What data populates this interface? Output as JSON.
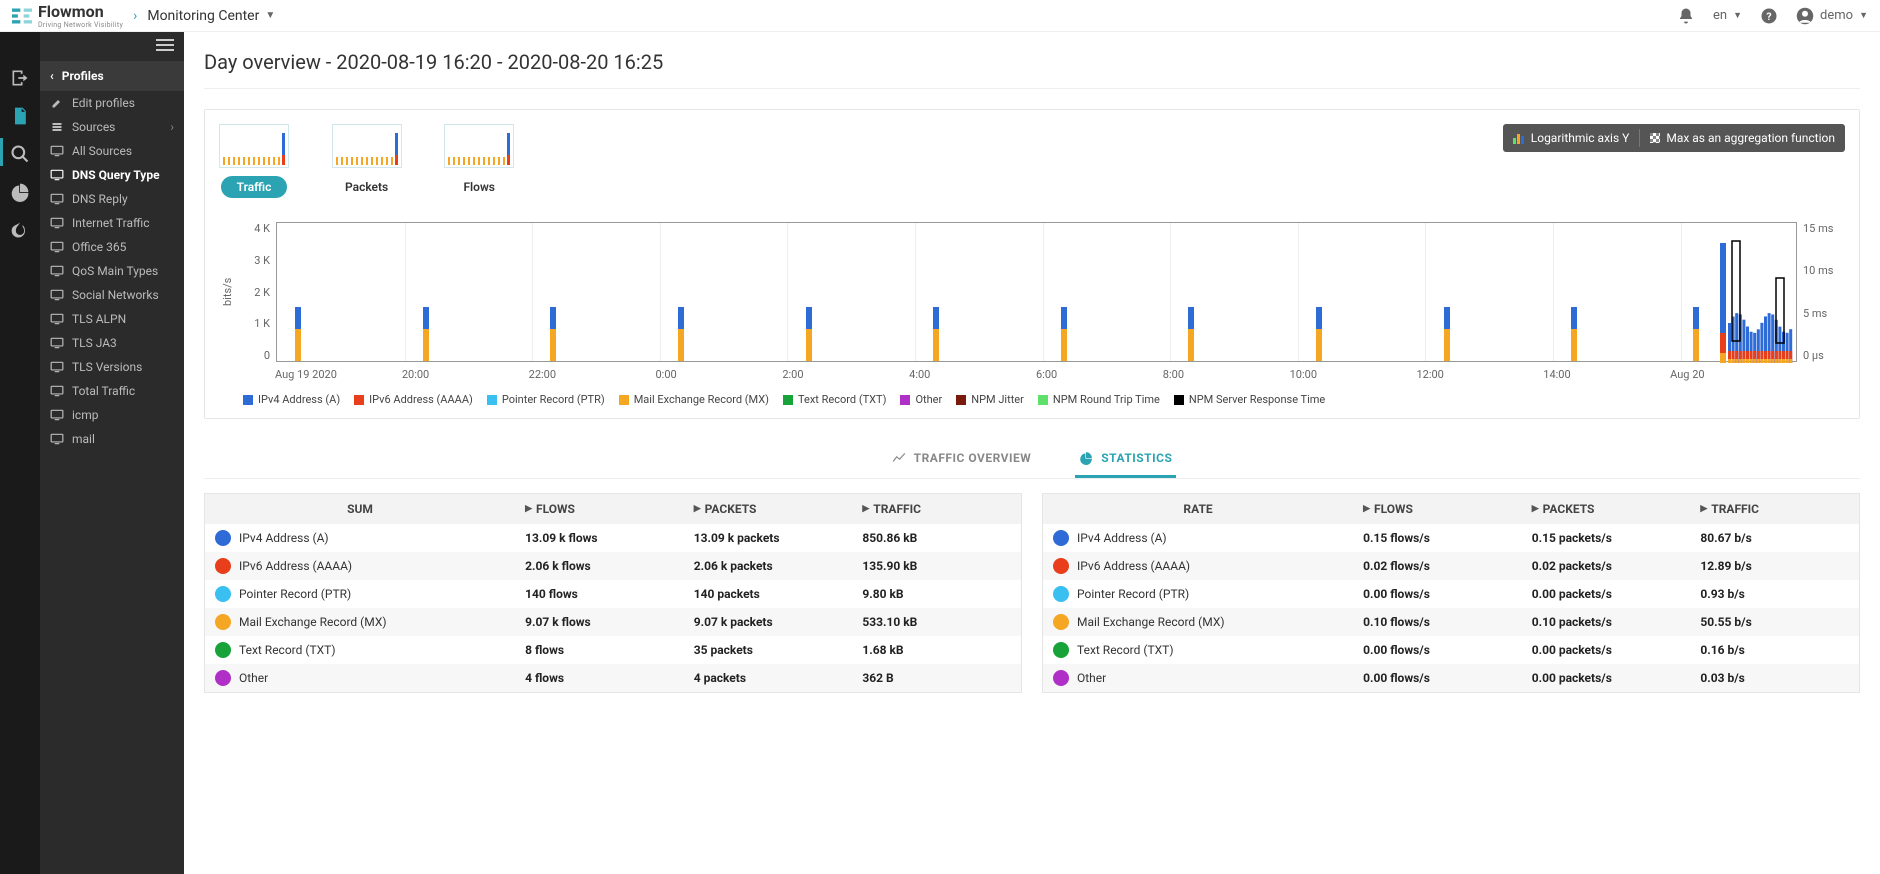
{
  "brand": {
    "name": "Flowmon",
    "tagline": "Driving Network Visibility"
  },
  "breadcrumb": "Monitoring Center",
  "topbar": {
    "lang": "en",
    "user": "demo"
  },
  "sidebar": {
    "back_label": "Profiles",
    "items": [
      {
        "label": "Edit profiles",
        "icon": "pencil"
      },
      {
        "label": "Sources",
        "icon": "stack",
        "arrow": true
      },
      {
        "label": "All Sources",
        "icon": "monitor"
      },
      {
        "label": "DNS Query Type",
        "icon": "monitor",
        "active": true
      },
      {
        "label": "DNS Reply",
        "icon": "monitor"
      },
      {
        "label": "Internet Traffic",
        "icon": "monitor"
      },
      {
        "label": "Office 365",
        "icon": "monitor"
      },
      {
        "label": "QoS Main Types",
        "icon": "monitor"
      },
      {
        "label": "Social Networks",
        "icon": "monitor"
      },
      {
        "label": "TLS ALPN",
        "icon": "monitor"
      },
      {
        "label": "TLS JA3",
        "icon": "monitor"
      },
      {
        "label": "TLS Versions",
        "icon": "monitor"
      },
      {
        "label": "Total Traffic",
        "icon": "monitor"
      },
      {
        "label": "icmp",
        "icon": "monitor"
      },
      {
        "label": "mail",
        "icon": "monitor"
      }
    ]
  },
  "page_title": "Day overview - 2020-08-19 16:20 - 2020-08-20 16:25",
  "thumbs": [
    {
      "label": "Traffic",
      "active": true
    },
    {
      "label": "Packets",
      "active": false
    },
    {
      "label": "Flows",
      "active": false
    }
  ],
  "toggles": {
    "log": "Logarithmic axis Y",
    "max": "Max as an aggregation function"
  },
  "chart": {
    "type": "bar",
    "y_label": "bits/s",
    "y_ticks": [
      "4 K",
      "3 K",
      "2 K",
      "1 K",
      "0"
    ],
    "y2_ticks": [
      "15 ms",
      "10 ms",
      "5 ms",
      "0 µs"
    ],
    "x_ticks": [
      "Aug 19 2020",
      "20:00",
      "22:00",
      "0:00",
      "2:00",
      "4:00",
      "6:00",
      "8:00",
      "10:00",
      "12:00",
      "14:00",
      "Aug 20"
    ],
    "colors": {
      "ipv4": "#2e6bd6",
      "ipv6": "#e83e1b",
      "ptr": "#39bff0",
      "mx": "#f5a623",
      "txt": "#17a33a",
      "other": "#b030c7",
      "jitter": "#7a1a0f",
      "rtt": "#5fe06a",
      "srt": "#000000",
      "grid": "#eeeeee",
      "axis": "#999999"
    },
    "bars": [
      {
        "x_pct": 1.2,
        "mx": 32,
        "ipv4": 22
      },
      {
        "x_pct": 9.6,
        "mx": 32,
        "ipv4": 22
      },
      {
        "x_pct": 18.0,
        "mx": 32,
        "ipv4": 22
      },
      {
        "x_pct": 26.4,
        "mx": 32,
        "ipv4": 22
      },
      {
        "x_pct": 34.8,
        "mx": 32,
        "ipv4": 22
      },
      {
        "x_pct": 43.2,
        "mx": 32,
        "ipv4": 22
      },
      {
        "x_pct": 51.6,
        "mx": 32,
        "ipv4": 22
      },
      {
        "x_pct": 60.0,
        "mx": 32,
        "ipv4": 22
      },
      {
        "x_pct": 68.4,
        "mx": 32,
        "ipv4": 22
      },
      {
        "x_pct": 76.8,
        "mx": 32,
        "ipv4": 22
      },
      {
        "x_pct": 85.2,
        "mx": 32,
        "ipv4": 22
      },
      {
        "x_pct": 93.2,
        "mx": 32,
        "ipv4": 22
      }
    ],
    "legend": [
      {
        "label": "IPv4 Address (A)",
        "color": "#2e6bd6"
      },
      {
        "label": "IPv6 Address (AAAA)",
        "color": "#e83e1b"
      },
      {
        "label": "Pointer Record (PTR)",
        "color": "#39bff0"
      },
      {
        "label": "Mail Exchange Record (MX)",
        "color": "#f5a623"
      },
      {
        "label": "Text Record (TXT)",
        "color": "#17a33a"
      },
      {
        "label": "Other",
        "color": "#b030c7"
      },
      {
        "label": "NPM Jitter",
        "color": "#7a1a0f"
      },
      {
        "label": "NPM Round Trip Time",
        "color": "#5fe06a"
      },
      {
        "label": "NPM Server Response Time",
        "color": "#000000"
      }
    ]
  },
  "tabs": {
    "overview": "TRAFFIC OVERVIEW",
    "stats": "STATISTICS"
  },
  "stats": {
    "sum": {
      "title": "SUM",
      "cols": [
        "FLOWS",
        "PACKETS",
        "TRAFFIC"
      ],
      "rows": [
        {
          "label": "IPv4 Address (A)",
          "color": "#2e6bd6",
          "flows": "13.09 k flows",
          "packets": "13.09 k packets",
          "traffic": "850.86 kB"
        },
        {
          "label": "IPv6 Address (AAAA)",
          "color": "#e83e1b",
          "flows": "2.06 k flows",
          "packets": "2.06 k packets",
          "traffic": "135.90 kB"
        },
        {
          "label": "Pointer Record (PTR)",
          "color": "#39bff0",
          "flows": "140   flows",
          "packets": "140   packets",
          "traffic": "9.80 kB"
        },
        {
          "label": "Mail Exchange Record (MX)",
          "color": "#f5a623",
          "flows": "9.07 k flows",
          "packets": "9.07 k packets",
          "traffic": "533.10 kB"
        },
        {
          "label": "Text Record (TXT)",
          "color": "#17a33a",
          "flows": "8   flows",
          "packets": "35   packets",
          "traffic": "1.68 kB"
        },
        {
          "label": "Other",
          "color": "#b030c7",
          "flows": "4   flows",
          "packets": "4   packets",
          "traffic": "362  B"
        }
      ]
    },
    "rate": {
      "title": "RATE",
      "cols": [
        "FLOWS",
        "PACKETS",
        "TRAFFIC"
      ],
      "rows": [
        {
          "label": "IPv4 Address (A)",
          "color": "#2e6bd6",
          "flows": "0.15 flows/s",
          "packets": "0.15 packets/s",
          "traffic": "80.67  b/s"
        },
        {
          "label": "IPv6 Address (AAAA)",
          "color": "#e83e1b",
          "flows": "0.02 flows/s",
          "packets": "0.02 packets/s",
          "traffic": "12.89  b/s"
        },
        {
          "label": "Pointer Record (PTR)",
          "color": "#39bff0",
          "flows": "0.00 flows/s",
          "packets": "0.00 packets/s",
          "traffic": "0.93 b/s"
        },
        {
          "label": "Mail Exchange Record (MX)",
          "color": "#f5a623",
          "flows": "0.10 flows/s",
          "packets": "0.10 packets/s",
          "traffic": "50.55  b/s"
        },
        {
          "label": "Text Record (TXT)",
          "color": "#17a33a",
          "flows": "0.00 flows/s",
          "packets": "0.00 packets/s",
          "traffic": "0.16 b/s"
        },
        {
          "label": "Other",
          "color": "#b030c7",
          "flows": "0.00 flows/s",
          "packets": "0.00 packets/s",
          "traffic": "0.03 b/s"
        }
      ]
    }
  }
}
